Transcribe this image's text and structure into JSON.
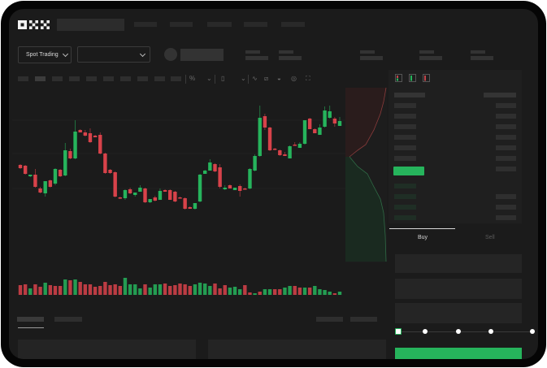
{
  "brand": {
    "logo": "OKX"
  },
  "header": {
    "market_selector_label": "Spot Trading"
  },
  "trade_panel": {
    "buy_tab": "Buy",
    "sell_tab": "Sell"
  },
  "colors": {
    "up": "#26b45c",
    "down": "#d8424a",
    "background": "#1b1b1b",
    "panel": "#1f1f1f",
    "accent": "#26b45c"
  },
  "icons": [
    "chevron-down-icon",
    "line-tool-icon",
    "ruler-icon",
    "camera-icon",
    "target-icon",
    "fullscreen-icon",
    "orderbook-both-icon",
    "orderbook-bids-icon",
    "orderbook-asks-icon"
  ],
  "order_form": {
    "leverage_slider_value": 0
  },
  "chart_data": {
    "type": "candlestick",
    "ohlc": [
      [
        97,
        98,
        92,
        93
      ],
      [
        96,
        97,
        85,
        86
      ],
      [
        83,
        85,
        82,
        85
      ],
      [
        85,
        92,
        69,
        70
      ],
      [
        68,
        70,
        62,
        63
      ],
      [
        62,
        77,
        58,
        77
      ],
      [
        78,
        79,
        69,
        70
      ],
      [
        74,
        93,
        72,
        92
      ],
      [
        91,
        92,
        82,
        83
      ],
      [
        84,
        124,
        83,
        115
      ],
      [
        114,
        117,
        104,
        105
      ],
      [
        105,
        152,
        104,
        138
      ],
      [
        140,
        141,
        137,
        137
      ],
      [
        137,
        140,
        132,
        133
      ],
      [
        136,
        142,
        124,
        125
      ],
      [
        133,
        134,
        131,
        131
      ],
      [
        134,
        137,
        110,
        111
      ],
      [
        111,
        112,
        86,
        87
      ],
      [
        91,
        92,
        86,
        87
      ],
      [
        88,
        89,
        57,
        58
      ],
      [
        57,
        58,
        55,
        56
      ],
      [
        56,
        67,
        54,
        66
      ],
      [
        67,
        69,
        61,
        62
      ],
      [
        60,
        63,
        58,
        63
      ],
      [
        64,
        72,
        64,
        69
      ],
      [
        68,
        69,
        50,
        51
      ],
      [
        51,
        55,
        50,
        55
      ],
      [
        57,
        59,
        52,
        53
      ],
      [
        54,
        68,
        54,
        65
      ],
      [
        66,
        67,
        64,
        64
      ],
      [
        66,
        67,
        54,
        54
      ],
      [
        64,
        65,
        51,
        52
      ],
      [
        57,
        58,
        56,
        56
      ],
      [
        56,
        57,
        42,
        43
      ],
      [
        45,
        46,
        43,
        43
      ],
      [
        43,
        50,
        42,
        50
      ],
      [
        52,
        86,
        51,
        85
      ],
      [
        86,
        91,
        86,
        90
      ],
      [
        90,
        104,
        90,
        100
      ],
      [
        98,
        99,
        88,
        89
      ],
      [
        94,
        98,
        68,
        70
      ],
      [
        67,
        72,
        66,
        69
      ],
      [
        72,
        73,
        68,
        68
      ],
      [
        66,
        69,
        66,
        69
      ],
      [
        71,
        73,
        58,
        65
      ],
      [
        68,
        69,
        67,
        67
      ],
      [
        68,
        93,
        67,
        92
      ],
      [
        90,
        110,
        89,
        108
      ],
      [
        108,
        170,
        107,
        155
      ],
      [
        157,
        160,
        140,
        143
      ],
      [
        143,
        144,
        114,
        115
      ],
      [
        117,
        118,
        115,
        116
      ],
      [
        115,
        116,
        108,
        109
      ],
      [
        110,
        113,
        108,
        108
      ],
      [
        105,
        121,
        105,
        120
      ],
      [
        122,
        125,
        121,
        121
      ],
      [
        118,
        125,
        118,
        123
      ],
      [
        123,
        152,
        122,
        152
      ],
      [
        154,
        155,
        141,
        141
      ],
      [
        141,
        142,
        136,
        136
      ],
      [
        134,
        147,
        134,
        143
      ],
      [
        144,
        169,
        143,
        164
      ],
      [
        155,
        170,
        154,
        163
      ],
      [
        154,
        156,
        144,
        148
      ],
      [
        145,
        156,
        145,
        151
      ]
    ],
    "volume": [
      12,
      13,
      8,
      13,
      10,
      15,
      12,
      11,
      11,
      19,
      18,
      19,
      16,
      13,
      13,
      10,
      11,
      16,
      12,
      13,
      11,
      21,
      13,
      13,
      8,
      13,
      9,
      13,
      13,
      14,
      11,
      12,
      14,
      13,
      11,
      13,
      15,
      14,
      11,
      14,
      8,
      12,
      9,
      10,
      7,
      12,
      3,
      2,
      4,
      7,
      7,
      7,
      7,
      9,
      11,
      11,
      9,
      9,
      9,
      11,
      7,
      6,
      4,
      2,
      4
    ],
    "volume_up": [
      0,
      0,
      1,
      0,
      0,
      1,
      0,
      0,
      0,
      1,
      0,
      1,
      0,
      0,
      0,
      0,
      0,
      0,
      0,
      0,
      0,
      1,
      1,
      1,
      1,
      0,
      1,
      1,
      1,
      0,
      0,
      0,
      0,
      0,
      0,
      1,
      1,
      1,
      1,
      0,
      0,
      0,
      1,
      1,
      1,
      0,
      0,
      1,
      0,
      1,
      1,
      0,
      0,
      1,
      1,
      0,
      0,
      1,
      0,
      1,
      1,
      1,
      1,
      0,
      1
    ],
    "grid": true
  }
}
